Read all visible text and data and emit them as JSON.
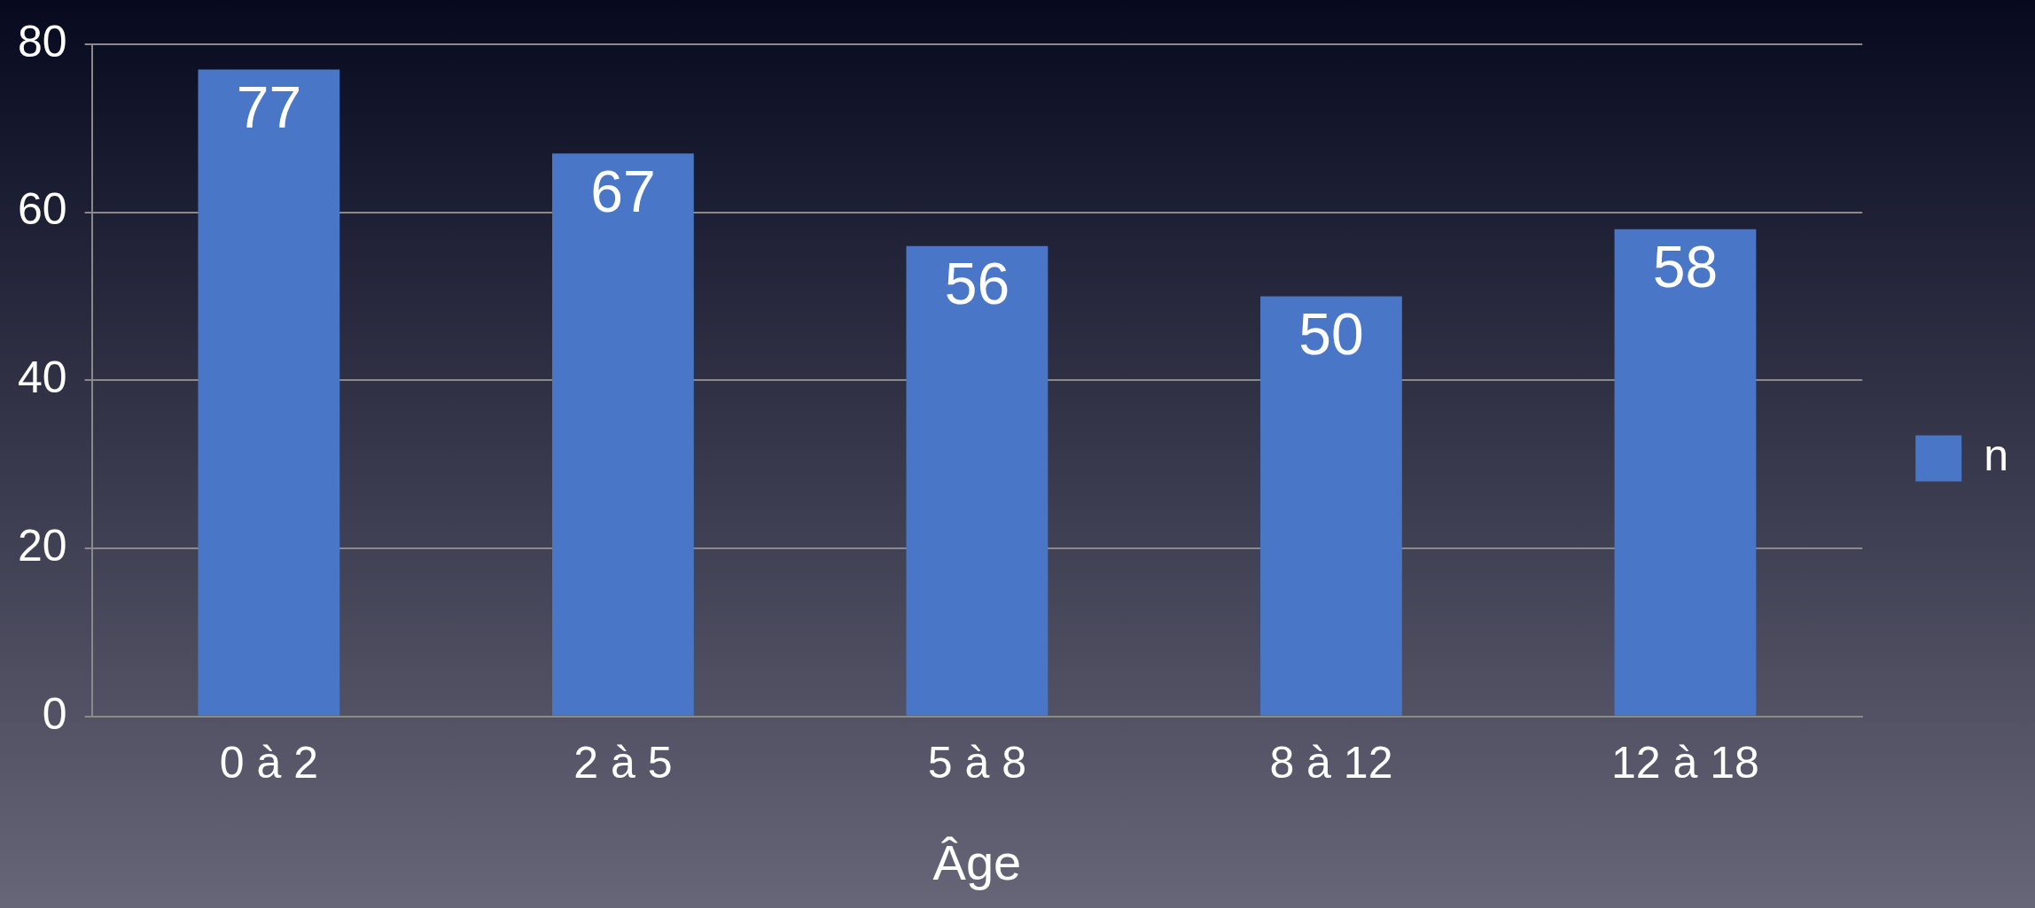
{
  "chart_data": {
    "type": "bar",
    "xlabel": "Âge",
    "categories": [
      "0 à 2",
      "2 à 5",
      "5 à 8",
      "8 à 12",
      "12 à 18"
    ],
    "series": [
      {
        "name": "n",
        "color": "#4a76c8",
        "values": [
          77,
          67,
          56,
          50,
          58
        ]
      }
    ],
    "ylim": [
      0,
      80
    ],
    "yticks": [
      0,
      20,
      40,
      60,
      80
    ],
    "grid": "y",
    "legend": "right",
    "data_labels": true
  }
}
